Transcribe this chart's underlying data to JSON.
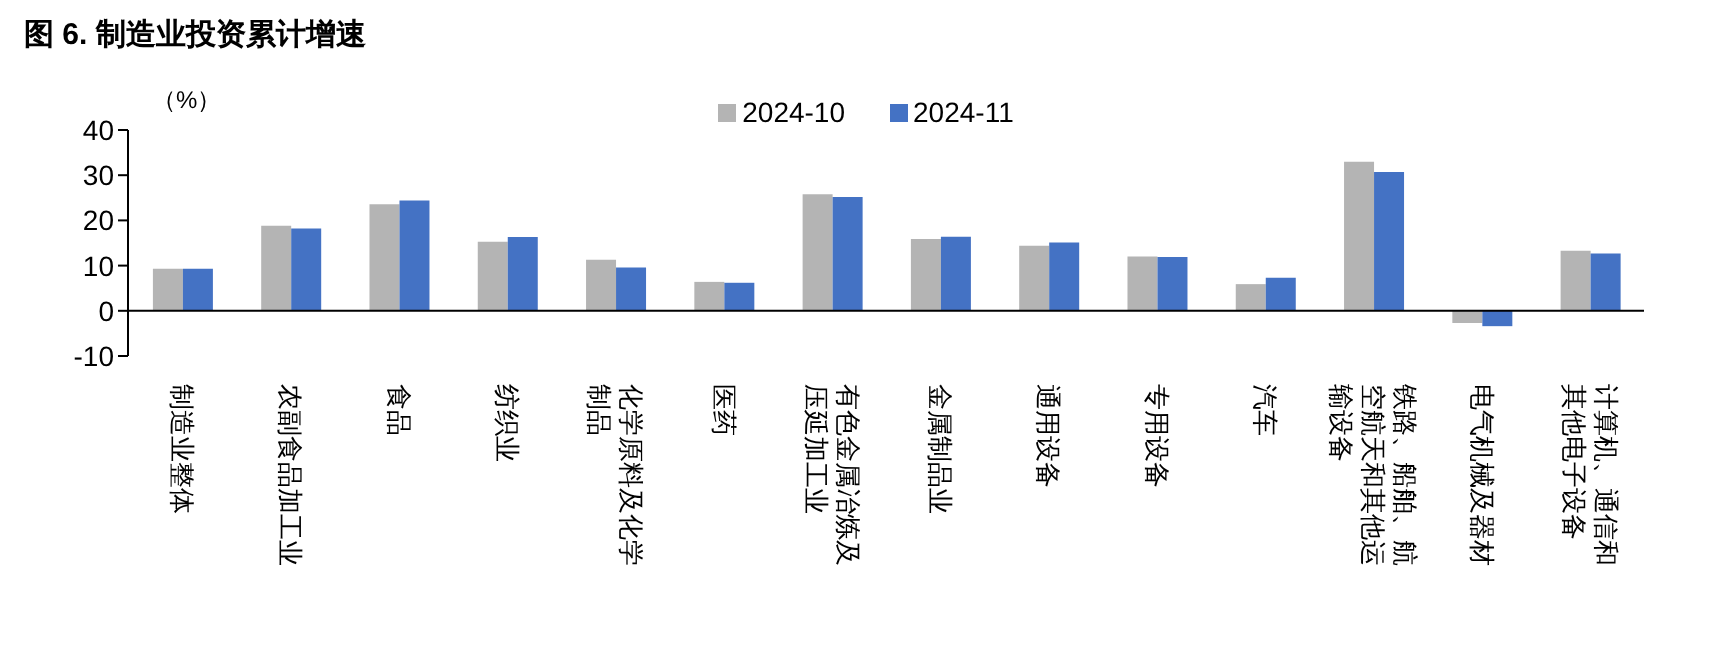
{
  "chart_data": {
    "type": "bar",
    "title": "图 6. 制造业投资累计增速",
    "ylabel": "（%）",
    "categories": [
      "制造业整体",
      "农副食品加工业",
      "食品",
      "纺织业",
      "化学原料及化学制品",
      "医药",
      "有色金属冶炼及压延加工业",
      "金属制品业",
      "通用设备",
      "专用设备",
      "汽车",
      "铁路、船舶、航空航天和其他运输设备",
      "电气机械及器材",
      "计算机、通信和其他电子设备"
    ],
    "series": [
      {
        "name": "2024-10",
        "color": "#b4b4b4",
        "values": [
          9.3,
          18.8,
          23.6,
          15.3,
          11.3,
          6.4,
          25.8,
          15.9,
          14.4,
          12.0,
          5.9,
          33.0,
          -2.7,
          13.3
        ]
      },
      {
        "name": "2024-11",
        "color": "#4472c4",
        "values": [
          9.3,
          18.2,
          24.4,
          16.3,
          9.6,
          6.2,
          25.2,
          16.4,
          15.1,
          11.9,
          7.3,
          30.7,
          -3.4,
          12.7
        ]
      }
    ],
    "ylim": [
      -10,
      40
    ],
    "yticks": [
      -10,
      0,
      10,
      20,
      30,
      40
    ],
    "legend": "top"
  }
}
